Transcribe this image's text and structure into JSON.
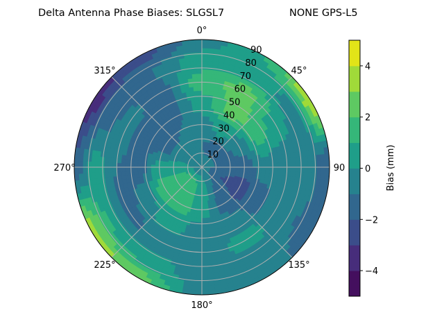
{
  "chart_data": {
    "type": "heatmap",
    "subtype": "polar-filled-contour",
    "title_left": "Delta Antenna Phase Biases: SLGSL7",
    "title_right": "NONE GPS-L5",
    "angular_axis": {
      "direction": "clockwise",
      "zero_location": "top",
      "tick_labels": [
        "0°",
        "45°",
        "90",
        "135°",
        "180°",
        "225°",
        "270°",
        "315°"
      ],
      "tick_values": [
        0,
        45,
        90,
        135,
        180,
        225,
        270,
        315
      ]
    },
    "radial_axis": {
      "range": [
        0,
        90
      ],
      "tick_labels": [
        "10",
        "20",
        "30",
        "40",
        "50",
        "60",
        "70",
        "80",
        "90"
      ],
      "tick_values": [
        10,
        20,
        30,
        40,
        50,
        60,
        70,
        80,
        90
      ],
      "grid": true
    },
    "azimuth": [
      0,
      30,
      60,
      90,
      120,
      150,
      180,
      210,
      240,
      270,
      300,
      330
    ],
    "zenith": [
      0,
      15,
      30,
      45,
      60,
      75,
      90
    ],
    "values": [
      [
        -0.5,
        -1.0,
        -0.5,
        0.5,
        1.5,
        0.5,
        -0.5
      ],
      [
        -0.5,
        -1.5,
        0.5,
        2.5,
        2.5,
        0.5,
        1.0
      ],
      [
        -0.5,
        -1.5,
        -0.5,
        1.5,
        0.5,
        -0.5,
        4.0
      ],
      [
        -0.5,
        -1.5,
        -1.5,
        -0.5,
        -1.0,
        -0.5,
        -2.0
      ],
      [
        -0.5,
        -2.0,
        -2.5,
        -1.5,
        -0.5,
        -1.0,
        -1.5
      ],
      [
        -0.5,
        -1.0,
        -1.5,
        -0.5,
        0.5,
        -0.5,
        -0.5
      ],
      [
        -0.5,
        0.5,
        0.5,
        -0.5,
        -1.0,
        -0.5,
        -0.5
      ],
      [
        -0.5,
        1.5,
        1.5,
        0.5,
        -0.5,
        0.5,
        2.5
      ],
      [
        -0.5,
        1.5,
        1.5,
        -0.5,
        -1.5,
        1.0,
        3.5
      ],
      [
        -0.5,
        0.5,
        0.5,
        -1.5,
        -1.0,
        0.5,
        -1.5
      ],
      [
        -0.5,
        -0.5,
        -1.5,
        -1.5,
        -0.5,
        -1.5,
        -3.5
      ],
      [
        -0.5,
        -0.5,
        -1.0,
        -1.5,
        -1.5,
        -1.0,
        -2.5
      ]
    ],
    "colorbar": {
      "label": "Bias (mm)",
      "levels": [
        -5,
        -4,
        -3,
        -2,
        -1,
        0,
        1,
        2,
        3,
        4,
        5
      ],
      "tick_labels": [
        "−4",
        "−2",
        "0",
        "2",
        "4"
      ],
      "tick_values": [
        -4,
        -2,
        0,
        2,
        4
      ],
      "colors": [
        "#440f5e",
        "#472d7b",
        "#3b4d8a",
        "#31678e",
        "#26828e",
        "#1f9e89",
        "#35b779",
        "#5ec962",
        "#a0da39",
        "#e2e418"
      ]
    }
  }
}
